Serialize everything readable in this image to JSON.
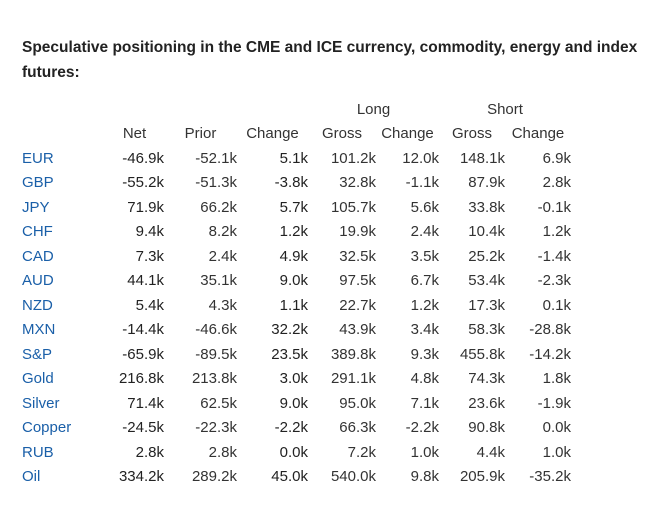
{
  "title": "Speculative positioning in the CME and ICE currency, commodity, energy and index futures:",
  "group_headers": {
    "long": "Long",
    "short": "Short"
  },
  "columns": {
    "net": "Net",
    "prior": "Prior",
    "change": "Change",
    "long_gross": "Gross",
    "long_change": "Change",
    "short_gross": "Gross",
    "short_change": "Change"
  },
  "rows": [
    {
      "name": "EUR",
      "net": "-46.9k",
      "prior": "-52.1k",
      "change": "5.1k",
      "long_gross": "101.2k",
      "long_change": "12.0k",
      "short_gross": "148.1k",
      "short_change": "6.9k"
    },
    {
      "name": "GBP",
      "net": "-55.2k",
      "prior": "-51.3k",
      "change": "-3.8k",
      "long_gross": "32.8k",
      "long_change": "-1.1k",
      "short_gross": "87.9k",
      "short_change": "2.8k"
    },
    {
      "name": "JPY",
      "net": "71.9k",
      "prior": "66.2k",
      "change": "5.7k",
      "long_gross": "105.7k",
      "long_change": "5.6k",
      "short_gross": "33.8k",
      "short_change": "-0.1k"
    },
    {
      "name": "CHF",
      "net": "9.4k",
      "prior": "8.2k",
      "change": "1.2k",
      "long_gross": "19.9k",
      "long_change": "2.4k",
      "short_gross": "10.4k",
      "short_change": "1.2k"
    },
    {
      "name": "CAD",
      "net": "7.3k",
      "prior": "2.4k",
      "change": "4.9k",
      "long_gross": "32.5k",
      "long_change": "3.5k",
      "short_gross": "25.2k",
      "short_change": "-1.4k"
    },
    {
      "name": "AUD",
      "net": "44.1k",
      "prior": "35.1k",
      "change": "9.0k",
      "long_gross": "97.5k",
      "long_change": "6.7k",
      "short_gross": "53.4k",
      "short_change": "-2.3k"
    },
    {
      "name": "NZD",
      "net": "5.4k",
      "prior": "4.3k",
      "change": "1.1k",
      "long_gross": "22.7k",
      "long_change": "1.2k",
      "short_gross": "17.3k",
      "short_change": "0.1k"
    },
    {
      "name": "MXN",
      "net": "-14.4k",
      "prior": "-46.6k",
      "change": "32.2k",
      "long_gross": "43.9k",
      "long_change": "3.4k",
      "short_gross": "58.3k",
      "short_change": "-28.8k"
    },
    {
      "name": "S&P",
      "net": "-65.9k",
      "prior": "-89.5k",
      "change": "23.5k",
      "long_gross": "389.8k",
      "long_change": "9.3k",
      "short_gross": "455.8k",
      "short_change": "-14.2k"
    },
    {
      "name": "Gold",
      "net": "216.8k",
      "prior": "213.8k",
      "change": "3.0k",
      "long_gross": "291.1k",
      "long_change": "4.8k",
      "short_gross": "74.3k",
      "short_change": "1.8k"
    },
    {
      "name": "Silver",
      "net": "71.4k",
      "prior": "62.5k",
      "change": "9.0k",
      "long_gross": "95.0k",
      "long_change": "7.1k",
      "short_gross": "23.6k",
      "short_change": "-1.9k"
    },
    {
      "name": "Copper",
      "net": "-24.5k",
      "prior": "-22.3k",
      "change": "-2.2k",
      "long_gross": "66.3k",
      "long_change": "-2.2k",
      "short_gross": "90.8k",
      "short_change": "0.0k"
    },
    {
      "name": "RUB",
      "net": "2.8k",
      "prior": "2.8k",
      "change": "0.0k",
      "long_gross": "7.2k",
      "long_change": "1.0k",
      "short_gross": "4.4k",
      "short_change": "1.0k"
    },
    {
      "name": "Oil",
      "net": "334.2k",
      "prior": "289.2k",
      "change": "45.0k",
      "long_gross": "540.0k",
      "long_change": "9.8k",
      "short_gross": "205.9k",
      "short_change": "-35.2k"
    }
  ]
}
